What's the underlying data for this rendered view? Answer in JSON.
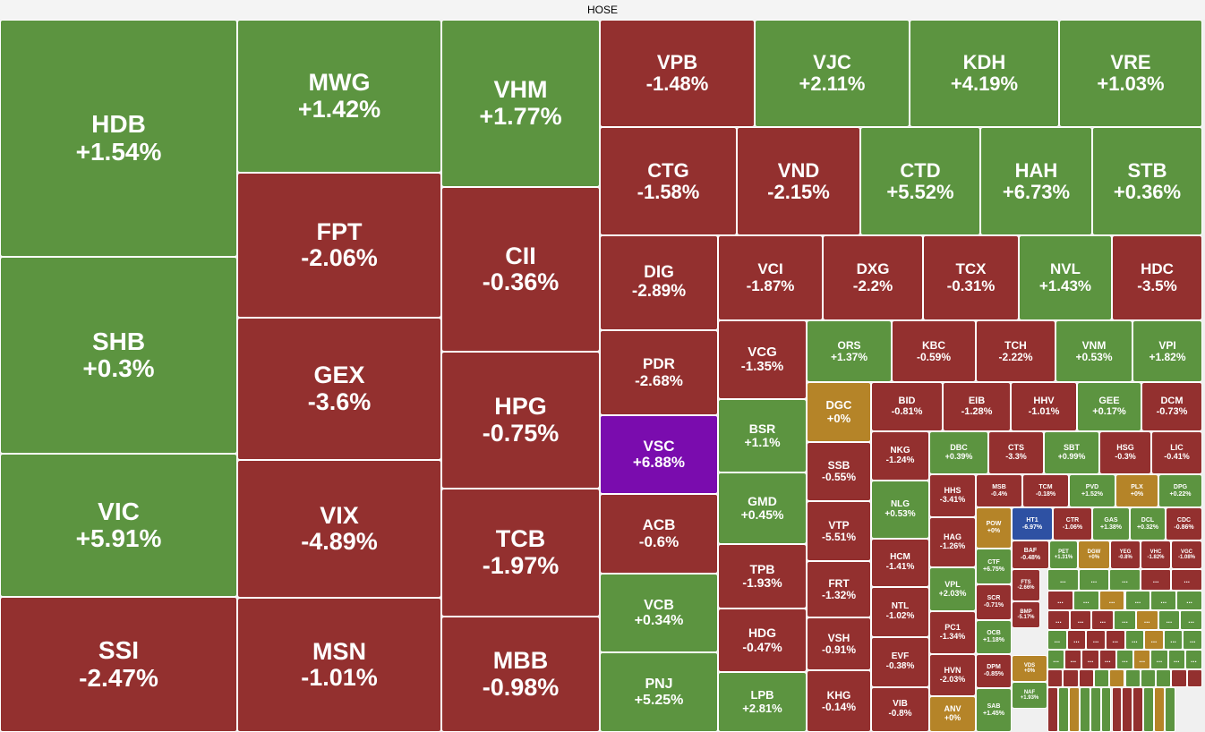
{
  "header": {
    "title": "HOSE"
  },
  "colors": {
    "up": "#5c9440",
    "down": "#93302f",
    "flat": "#b58428",
    "ceiling": "#7a0cae",
    "floor": "#2e51a3"
  },
  "more_label": "...",
  "tiles": [
    {
      "s": "HDB",
      "c": "+1.54%",
      "t": "green"
    },
    {
      "s": "SHB",
      "c": "+0.3%",
      "t": "green"
    },
    {
      "s": "VIC",
      "c": "+5.91%",
      "t": "green"
    },
    {
      "s": "SSI",
      "c": "-2.47%",
      "t": "red"
    },
    {
      "s": "MWG",
      "c": "+1.42%",
      "t": "green"
    },
    {
      "s": "FPT",
      "c": "-2.06%",
      "t": "red"
    },
    {
      "s": "GEX",
      "c": "-3.6%",
      "t": "red"
    },
    {
      "s": "VIX",
      "c": "-4.89%",
      "t": "red"
    },
    {
      "s": "MSN",
      "c": "-1.01%",
      "t": "red"
    },
    {
      "s": "VHM",
      "c": "+1.77%",
      "t": "green"
    },
    {
      "s": "CII",
      "c": "-0.36%",
      "t": "red"
    },
    {
      "s": "HPG",
      "c": "-0.75%",
      "t": "red"
    },
    {
      "s": "TCB",
      "c": "-1.97%",
      "t": "red"
    },
    {
      "s": "MBB",
      "c": "-0.98%",
      "t": "red"
    },
    {
      "s": "VPB",
      "c": "-1.48%",
      "t": "red"
    },
    {
      "s": "VJC",
      "c": "+2.11%",
      "t": "green"
    },
    {
      "s": "KDH",
      "c": "+4.19%",
      "t": "green"
    },
    {
      "s": "VRE",
      "c": "+1.03%",
      "t": "green"
    },
    {
      "s": "CTG",
      "c": "-1.58%",
      "t": "red"
    },
    {
      "s": "VND",
      "c": "-2.15%",
      "t": "red"
    },
    {
      "s": "CTD",
      "c": "+5.52%",
      "t": "green"
    },
    {
      "s": "HAH",
      "c": "+6.73%",
      "t": "green"
    },
    {
      "s": "STB",
      "c": "+0.36%",
      "t": "green"
    },
    {
      "s": "DIG",
      "c": "-2.89%",
      "t": "red"
    },
    {
      "s": "VCI",
      "c": "-1.87%",
      "t": "red"
    },
    {
      "s": "DXG",
      "c": "-2.2%",
      "t": "red"
    },
    {
      "s": "TCX",
      "c": "-0.31%",
      "t": "red"
    },
    {
      "s": "NVL",
      "c": "+1.43%",
      "t": "green"
    },
    {
      "s": "HDC",
      "c": "-3.5%",
      "t": "red"
    },
    {
      "s": "PDR",
      "c": "-2.68%",
      "t": "red"
    },
    {
      "s": "VSC",
      "c": "+6.88%",
      "t": "purple"
    },
    {
      "s": "ACB",
      "c": "-0.6%",
      "t": "red"
    },
    {
      "s": "VCB",
      "c": "+0.34%",
      "t": "green"
    },
    {
      "s": "PNJ",
      "c": "+5.25%",
      "t": "green"
    },
    {
      "s": "VCG",
      "c": "-1.35%",
      "t": "red"
    },
    {
      "s": "BSR",
      "c": "+1.1%",
      "t": "green"
    },
    {
      "s": "GMD",
      "c": "+0.45%",
      "t": "green"
    },
    {
      "s": "TPB",
      "c": "-1.93%",
      "t": "red"
    },
    {
      "s": "HDG",
      "c": "-0.47%",
      "t": "red"
    },
    {
      "s": "LPB",
      "c": "+2.81%",
      "t": "green"
    },
    {
      "s": "ORS",
      "c": "+1.37%",
      "t": "green"
    },
    {
      "s": "KBC",
      "c": "-0.59%",
      "t": "red"
    },
    {
      "s": "TCH",
      "c": "-2.22%",
      "t": "red"
    },
    {
      "s": "VNM",
      "c": "+0.53%",
      "t": "green"
    },
    {
      "s": "VPI",
      "c": "+1.82%",
      "t": "green"
    },
    {
      "s": "DGC",
      "c": "+0%",
      "t": "yellow"
    },
    {
      "s": "BID",
      "c": "-0.81%",
      "t": "red"
    },
    {
      "s": "EIB",
      "c": "-1.28%",
      "t": "red"
    },
    {
      "s": "HHV",
      "c": "-1.01%",
      "t": "red"
    },
    {
      "s": "GEE",
      "c": "+0.17%",
      "t": "green"
    },
    {
      "s": "DCM",
      "c": "-0.73%",
      "t": "red"
    },
    {
      "s": "SSB",
      "c": "-0.55%",
      "t": "red"
    },
    {
      "s": "NKG",
      "c": "-1.24%",
      "t": "red"
    },
    {
      "s": "DBC",
      "c": "+0.39%",
      "t": "green"
    },
    {
      "s": "CTS",
      "c": "-3.3%",
      "t": "red"
    },
    {
      "s": "SBT",
      "c": "+0.99%",
      "t": "green"
    },
    {
      "s": "HSG",
      "c": "-0.3%",
      "t": "red"
    },
    {
      "s": "LIC",
      "c": "-0.41%",
      "t": "red"
    },
    {
      "s": "VTP",
      "c": "-5.51%",
      "t": "red"
    },
    {
      "s": "NLG",
      "c": "+0.53%",
      "t": "green"
    },
    {
      "s": "HHS",
      "c": "-3.41%",
      "t": "red"
    },
    {
      "s": "MSB",
      "c": "-0.4%",
      "t": "red"
    },
    {
      "s": "TCM",
      "c": "-0.18%",
      "t": "red"
    },
    {
      "s": "PVD",
      "c": "+1.52%",
      "t": "green"
    },
    {
      "s": "PLX",
      "c": "+0%",
      "t": "yellow"
    },
    {
      "s": "DPG",
      "c": "+0.22%",
      "t": "green"
    },
    {
      "s": "FRT",
      "c": "-1.32%",
      "t": "red"
    },
    {
      "s": "HCM",
      "c": "-1.41%",
      "t": "red"
    },
    {
      "s": "HAG",
      "c": "-1.26%",
      "t": "red"
    },
    {
      "s": "POW",
      "c": "+0%",
      "t": "yellow"
    },
    {
      "s": "HT1",
      "c": "-6.97%",
      "t": "blue"
    },
    {
      "s": "CTR",
      "c": "-1.06%",
      "t": "red"
    },
    {
      "s": "GAS",
      "c": "+1.38%",
      "t": "green"
    },
    {
      "s": "DCL",
      "c": "+0.32%",
      "t": "green"
    },
    {
      "s": "CDC",
      "c": "-0.86%",
      "t": "red"
    },
    {
      "s": "VSH",
      "c": "-0.91%",
      "t": "red"
    },
    {
      "s": "NTL",
      "c": "-1.02%",
      "t": "red"
    },
    {
      "s": "VPL",
      "c": "+2.03%",
      "t": "green"
    },
    {
      "s": "CTF",
      "c": "+6.75%",
      "t": "green"
    },
    {
      "s": "BAF",
      "c": "-0.48%",
      "t": "red"
    },
    {
      "s": "PET",
      "c": "+1.31%",
      "t": "green"
    },
    {
      "s": "DGW",
      "c": "+0%",
      "t": "yellow"
    },
    {
      "s": "YEG",
      "c": "-0.8%",
      "t": "red"
    },
    {
      "s": "VHC",
      "c": "-1.82%",
      "t": "red"
    },
    {
      "s": "VGC",
      "c": "-1.08%",
      "t": "red"
    },
    {
      "s": "KHG",
      "c": "-0.14%",
      "t": "red"
    },
    {
      "s": "EVF",
      "c": "-0.38%",
      "t": "red"
    },
    {
      "s": "PC1",
      "c": "-1.34%",
      "t": "red"
    },
    {
      "s": "SCR",
      "c": "-0.71%",
      "t": "red"
    },
    {
      "s": "FTS",
      "c": "-2.66%",
      "t": "red"
    },
    {
      "s": "VIB",
      "c": "-0.8%",
      "t": "red"
    },
    {
      "s": "HVN",
      "c": "-2.03%",
      "t": "red"
    },
    {
      "s": "OCB",
      "c": "+1.18%",
      "t": "green"
    },
    {
      "s": "BMP",
      "c": "-5.17%",
      "t": "red"
    },
    {
      "s": "ANV",
      "c": "+0%",
      "t": "yellow"
    },
    {
      "s": "DPM",
      "c": "-0.85%",
      "t": "red"
    },
    {
      "s": "VDS",
      "c": "+0%",
      "t": "yellow"
    },
    {
      "s": "SAB",
      "c": "+1.45%",
      "t": "green"
    },
    {
      "s": "NAF",
      "c": "+1.93%",
      "t": "green"
    }
  ]
}
